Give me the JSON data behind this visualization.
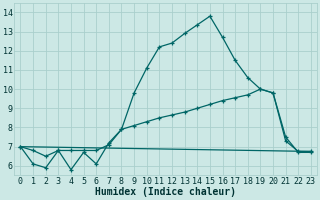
{
  "xlabel": "Humidex (Indice chaleur)",
  "xlim": [
    -0.5,
    23.5
  ],
  "ylim": [
    5.5,
    14.5
  ],
  "xticks": [
    0,
    1,
    2,
    3,
    4,
    5,
    6,
    7,
    8,
    9,
    10,
    11,
    12,
    13,
    14,
    15,
    16,
    17,
    18,
    19,
    20,
    21,
    22,
    23
  ],
  "yticks": [
    6,
    7,
    8,
    9,
    10,
    11,
    12,
    13,
    14
  ],
  "bg_color": "#cce8e5",
  "grid_color": "#aacfcc",
  "line_color": "#006666",
  "line1_x": [
    0,
    1,
    2,
    3,
    4,
    5,
    6,
    7,
    8,
    9,
    10,
    11,
    12,
    13,
    14,
    15,
    16,
    17,
    18,
    19,
    20,
    21,
    22,
    23
  ],
  "line1_y": [
    7.0,
    6.1,
    5.9,
    6.8,
    5.8,
    6.7,
    6.1,
    7.2,
    7.9,
    9.8,
    11.1,
    12.2,
    12.4,
    12.9,
    13.35,
    13.8,
    12.7,
    11.5,
    10.6,
    10.0,
    9.8,
    7.5,
    6.7,
    6.7
  ],
  "line2_x": [
    0,
    1,
    2,
    3,
    4,
    5,
    6,
    7,
    8,
    9,
    10,
    11,
    12,
    13,
    14,
    15,
    16,
    17,
    18,
    19,
    20,
    21,
    22,
    23
  ],
  "line2_y": [
    7.0,
    6.8,
    6.5,
    6.8,
    6.8,
    6.8,
    6.8,
    7.1,
    7.9,
    8.1,
    8.3,
    8.5,
    8.65,
    8.8,
    9.0,
    9.2,
    9.4,
    9.55,
    9.7,
    10.0,
    9.8,
    7.3,
    6.75,
    6.75
  ],
  "line3_x": [
    0,
    23
  ],
  "line3_y": [
    7.0,
    6.75
  ],
  "axis_fontsize": 7,
  "tick_fontsize": 6
}
